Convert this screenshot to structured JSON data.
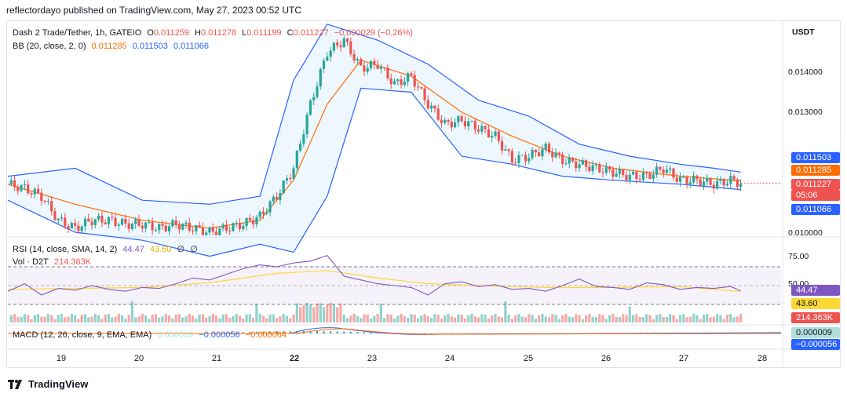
{
  "header": {
    "published_line": "reflectordayo published on TradingView.com, May 27, 2023 00:52 UTC"
  },
  "legend": {
    "symbol": "Dash 2 Trade/Tether, 1h, GATEIO",
    "o_label": "O",
    "o_value": "0.011259",
    "h_label": "H",
    "h_value": "0.011278",
    "l_label": "L",
    "l_value": "0.011199",
    "c_label": "C",
    "c_value": "0.011227",
    "change": "−0.000029 (−0.26%)",
    "bb_label": "BB (20, close, 2, 0)",
    "bb_basis": "0.011285",
    "bb_upper": "0.011503",
    "bb_lower": "0.011066",
    "rsi_label": "RSI (14, close, SMA, 14, 2)",
    "rsi_value": "44.47",
    "rsi_ma": "43.60",
    "rsi_z1": "∅",
    "rsi_z2": "∅",
    "vol_label": "Vol · D2T",
    "vol_value": "214.363K",
    "macd_label": "MACD (12, 26, close, 9, EMA, EMA)",
    "macd_hist": "0.000009",
    "macd_line": "−0.000056",
    "macd_signal": "−0.000064"
  },
  "price_axis": {
    "currency": "USDT",
    "ticks": [
      "0.014000",
      "0.013000",
      "0.010000"
    ],
    "tags": {
      "upper": "0.011503",
      "basis": "0.011285",
      "last": "0.011227",
      "countdown": "05:06",
      "lower": "0.011066"
    }
  },
  "rsi_axis": {
    "ticks": [
      "75.00",
      "50.00"
    ],
    "tags": {
      "rsi": "44.47",
      "ma": "43.60",
      "vol": "214.363K"
    }
  },
  "macd_axis": {
    "tags": {
      "hist": "0.000009",
      "macd": "−0.000056"
    }
  },
  "time_axis": [
    "19",
    "20",
    "21",
    "22",
    "23",
    "24",
    "25",
    "26",
    "27",
    "28"
  ],
  "colors": {
    "up": "#26a69a",
    "down": "#ef5350",
    "bb_band": "#2962ff",
    "bb_basis": "#ff6d00",
    "rsi": "#7e57c2",
    "rsi_ma": "#fdd835",
    "macd_neg_tag": "#2962ff"
  },
  "brand": "TradingView",
  "chart_data": {
    "type": "candlestick",
    "interval": "1h",
    "days": [
      "19",
      "20",
      "21",
      "22",
      "23",
      "24",
      "25",
      "26",
      "27",
      "28"
    ],
    "close_path": [
      [
        0,
        0.0112
      ],
      [
        5,
        0.0111
      ],
      [
        10,
        0.0109
      ],
      [
        15,
        0.0103
      ],
      [
        20,
        0.0101
      ],
      [
        25,
        0.0103
      ],
      [
        30,
        0.0103
      ],
      [
        35,
        0.0102
      ],
      [
        40,
        0.0102
      ],
      [
        45,
        0.0101
      ],
      [
        50,
        0.0102
      ],
      [
        55,
        0.0101
      ],
      [
        60,
        0.01
      ],
      [
        65,
        0.0101
      ],
      [
        70,
        0.0102
      ],
      [
        75,
        0.0104
      ],
      [
        80,
        0.0109
      ],
      [
        85,
        0.0116
      ],
      [
        90,
        0.0132
      ],
      [
        95,
        0.0145
      ],
      [
        100,
        0.0148
      ],
      [
        105,
        0.0141
      ],
      [
        110,
        0.0142
      ],
      [
        115,
        0.0137
      ],
      [
        120,
        0.0139
      ],
      [
        125,
        0.0132
      ],
      [
        130,
        0.0127
      ],
      [
        135,
        0.0128
      ],
      [
        140,
        0.0126
      ],
      [
        145,
        0.0124
      ],
      [
        150,
        0.0118
      ],
      [
        155,
        0.0119
      ],
      [
        160,
        0.0121
      ],
      [
        165,
        0.0118
      ],
      [
        170,
        0.0117
      ],
      [
        175,
        0.0116
      ],
      [
        180,
        0.0115
      ],
      [
        185,
        0.0114
      ],
      [
        190,
        0.0114
      ],
      [
        195,
        0.0116
      ],
      [
        200,
        0.0113
      ],
      [
        205,
        0.0113
      ],
      [
        210,
        0.0112
      ],
      [
        215,
        0.0113
      ],
      [
        218,
        0.011227
      ]
    ],
    "bb_upper": [
      [
        0,
        0.0114
      ],
      [
        20,
        0.0116
      ],
      [
        40,
        0.0108
      ],
      [
        60,
        0.0107
      ],
      [
        75,
        0.0109
      ],
      [
        85,
        0.0138
      ],
      [
        95,
        0.0152
      ],
      [
        110,
        0.0148
      ],
      [
        125,
        0.0142
      ],
      [
        140,
        0.0133
      ],
      [
        155,
        0.0129
      ],
      [
        170,
        0.0122
      ],
      [
        185,
        0.0119
      ],
      [
        200,
        0.0117
      ],
      [
        210,
        0.0116
      ],
      [
        218,
        0.011503
      ]
    ],
    "bb_basis": [
      [
        0,
        0.0112
      ],
      [
        20,
        0.0107
      ],
      [
        40,
        0.0103
      ],
      [
        60,
        0.0101
      ],
      [
        75,
        0.0103
      ],
      [
        85,
        0.0113
      ],
      [
        95,
        0.0132
      ],
      [
        105,
        0.0143
      ],
      [
        120,
        0.0139
      ],
      [
        135,
        0.013
      ],
      [
        150,
        0.0124
      ],
      [
        165,
        0.0119
      ],
      [
        180,
        0.0116
      ],
      [
        200,
        0.0114
      ],
      [
        218,
        0.011285
      ]
    ],
    "bb_lower": [
      [
        0,
        0.0108
      ],
      [
        20,
        0.01
      ],
      [
        40,
        0.0098
      ],
      [
        60,
        0.0094
      ],
      [
        75,
        0.0097
      ],
      [
        85,
        0.0095
      ],
      [
        95,
        0.0109
      ],
      [
        105,
        0.0136
      ],
      [
        120,
        0.0135
      ],
      [
        135,
        0.0119
      ],
      [
        150,
        0.0117
      ],
      [
        165,
        0.0114
      ],
      [
        180,
        0.0113
      ],
      [
        200,
        0.0112
      ],
      [
        218,
        0.011066
      ]
    ],
    "rsi": [
      [
        0,
        44
      ],
      [
        5,
        52
      ],
      [
        10,
        40
      ],
      [
        15,
        47
      ],
      [
        20,
        45
      ],
      [
        25,
        50
      ],
      [
        30,
        46
      ],
      [
        35,
        44
      ],
      [
        40,
        48
      ],
      [
        45,
        47
      ],
      [
        50,
        52
      ],
      [
        55,
        58
      ],
      [
        60,
        56
      ],
      [
        65,
        62
      ],
      [
        70,
        68
      ],
      [
        75,
        72
      ],
      [
        80,
        70
      ],
      [
        85,
        74
      ],
      [
        90,
        76
      ],
      [
        95,
        82
      ],
      [
        100,
        60
      ],
      [
        105,
        56
      ],
      [
        110,
        52
      ],
      [
        115,
        50
      ],
      [
        120,
        48
      ],
      [
        125,
        40
      ],
      [
        130,
        52
      ],
      [
        135,
        54
      ],
      [
        140,
        49
      ],
      [
        145,
        51
      ],
      [
        150,
        46
      ],
      [
        155,
        47
      ],
      [
        160,
        44
      ],
      [
        165,
        50
      ],
      [
        170,
        57
      ],
      [
        175,
        49
      ],
      [
        180,
        48
      ],
      [
        185,
        46
      ],
      [
        190,
        53
      ],
      [
        195,
        51
      ],
      [
        200,
        46
      ],
      [
        205,
        48
      ],
      [
        210,
        47
      ],
      [
        215,
        49
      ],
      [
        218,
        44.47
      ]
    ],
    "rsi_ma": [
      [
        0,
        46
      ],
      [
        20,
        47
      ],
      [
        40,
        48
      ],
      [
        60,
        53
      ],
      [
        80,
        63
      ],
      [
        95,
        66
      ],
      [
        110,
        58
      ],
      [
        125,
        52
      ],
      [
        140,
        50
      ],
      [
        160,
        48
      ],
      [
        180,
        48
      ],
      [
        200,
        49
      ],
      [
        218,
        43.6
      ]
    ],
    "macd_hist_last": 9e-06,
    "macd_last": -5.6e-05,
    "signal_last": -6.4e-05,
    "volume_last": "214.363K"
  }
}
